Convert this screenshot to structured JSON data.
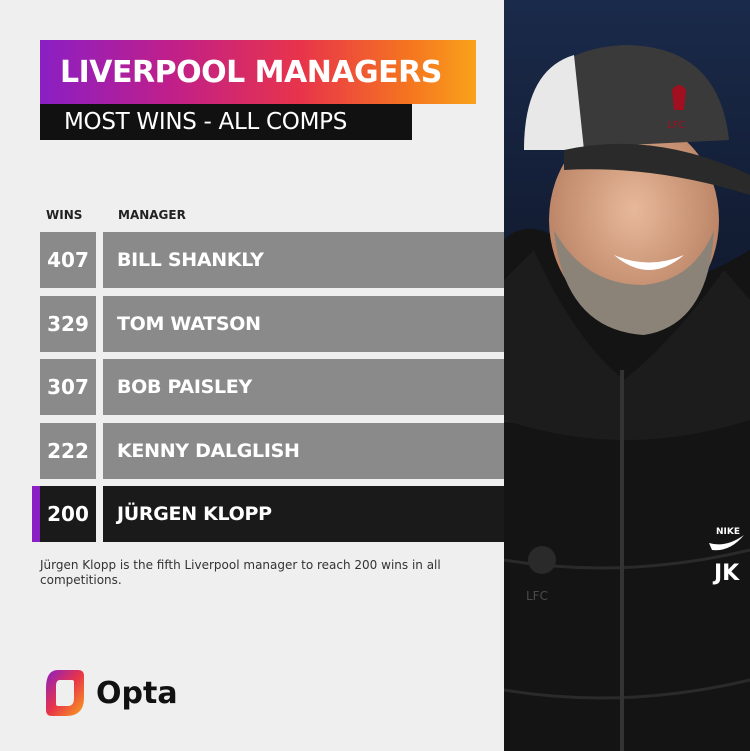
{
  "title": "LIVERPOOL MANAGERS",
  "subtitle": "MOST WINS - ALL COMPS",
  "columns": {
    "wins": "WINS",
    "manager": "MANAGER"
  },
  "chart_data": {
    "type": "table",
    "title": "LIVERPOOL MANAGERS",
    "subtitle": "MOST WINS - ALL COMPS",
    "headers": [
      "WINS",
      "MANAGER"
    ],
    "rows": [
      {
        "wins": "407",
        "manager": "BILL SHANKLY",
        "highlight": false
      },
      {
        "wins": "329",
        "manager": "TOM WATSON",
        "highlight": false
      },
      {
        "wins": "307",
        "manager": "BOB PAISLEY",
        "highlight": false
      },
      {
        "wins": "222",
        "manager": "KENNY DALGLISH",
        "highlight": false
      },
      {
        "wins": "200",
        "manager": "JÜRGEN KLOPP",
        "highlight": true
      }
    ]
  },
  "footnote": "Jürgen Klopp is the fifth Liverpool manager to reach 200 wins in all competitions.",
  "brand": {
    "name": "Opta"
  },
  "photo": {
    "cap_badge": "LFC",
    "jacket_brand": "NIKE",
    "jacket_initials": "JK",
    "chest_badge": "LFC"
  },
  "colors": {
    "gradient": [
      "#8a1fc4",
      "#e8344a",
      "#f9a21b"
    ],
    "row_normal": "#8a8a8a",
    "row_highlight": "#1a1a1a",
    "accent": "#8a1fc4"
  }
}
